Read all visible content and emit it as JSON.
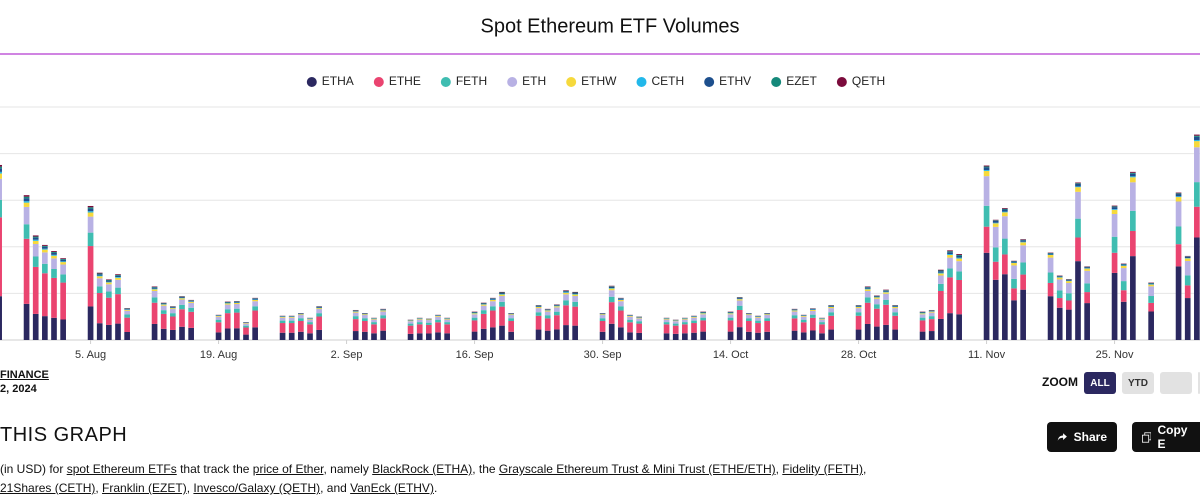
{
  "chart_data": {
    "type": "stacked_bar",
    "title": "Spot Ethereum ETF Volumes",
    "x": [
      "2024-07-26",
      "2024-07-29",
      "2024-07-30",
      "2024-07-31",
      "2024-08-01",
      "2024-08-02",
      "2024-08-05",
      "2024-08-06",
      "2024-08-07",
      "2024-08-08",
      "2024-08-09",
      "2024-08-12",
      "2024-08-13",
      "2024-08-14",
      "2024-08-15",
      "2024-08-16",
      "2024-08-19",
      "2024-08-20",
      "2024-08-21",
      "2024-08-22",
      "2024-08-23",
      "2024-08-26",
      "2024-08-27",
      "2024-08-28",
      "2024-08-29",
      "2024-08-30",
      "2024-09-03",
      "2024-09-04",
      "2024-09-05",
      "2024-09-06",
      "2024-09-09",
      "2024-09-10",
      "2024-09-11",
      "2024-09-12",
      "2024-09-13",
      "2024-09-16",
      "2024-09-17",
      "2024-09-18",
      "2024-09-19",
      "2024-09-20",
      "2024-09-23",
      "2024-09-24",
      "2024-09-25",
      "2024-09-26",
      "2024-09-27",
      "2024-09-30",
      "2024-10-01",
      "2024-10-02",
      "2024-10-03",
      "2024-10-04",
      "2024-10-07",
      "2024-10-08",
      "2024-10-09",
      "2024-10-10",
      "2024-10-11",
      "2024-10-14",
      "2024-10-15",
      "2024-10-16",
      "2024-10-17",
      "2024-10-18",
      "2024-10-21",
      "2024-10-22",
      "2024-10-23",
      "2024-10-24",
      "2024-10-25",
      "2024-10-28",
      "2024-10-29",
      "2024-10-30",
      "2024-10-31",
      "2024-11-01",
      "2024-11-04",
      "2024-11-05",
      "2024-11-06",
      "2024-11-07",
      "2024-11-08",
      "2024-11-11",
      "2024-11-12",
      "2024-11-13",
      "2024-11-14",
      "2024-11-15",
      "2024-11-18",
      "2024-11-19",
      "2024-11-20",
      "2024-11-21",
      "2024-11-22",
      "2024-11-25",
      "2024-11-26",
      "2024-11-27",
      "2024-11-29",
      "2024-12-02",
      "2024-12-03",
      "2024-12-04"
    ],
    "series": [
      {
        "name": "ETHA",
        "color": "#2b2860",
        "values": [
          235,
          194,
          140,
          128,
          119,
          110,
          180,
          90,
          81,
          88,
          43,
          86,
          60,
          54,
          71,
          65,
          41,
          62,
          63,
          29,
          68,
          39,
          39,
          44,
          36,
          54,
          48,
          44,
          36,
          50,
          33,
          36,
          35,
          41,
          36,
          45,
          60,
          68,
          77,
          44,
          56,
          50,
          57,
          80,
          77,
          44,
          87,
          68,
          41,
          38,
          36,
          33,
          36,
          39,
          45,
          45,
          69,
          44,
          39,
          44,
          50,
          41,
          51,
          36,
          56,
          56,
          86,
          72,
          81,
          56,
          45,
          48,
          113,
          144,
          138,
          468,
          323,
          353,
          213,
          270,
          235,
          173,
          163,
          423,
          198,
          360,
          205,
          450,
          153,
          395,
          225,
          550
        ]
      },
      {
        "name": "ETHE",
        "color": "#ea4470",
        "values": [
          423,
          349,
          252,
          230,
          214,
          198,
          324,
          162,
          146,
          158,
          77,
          114,
          80,
          72,
          94,
          86,
          54,
          82,
          84,
          38,
          90,
          52,
          52,
          58,
          48,
          72,
          64,
          58,
          48,
          66,
          44,
          48,
          46,
          54,
          48,
          60,
          80,
          90,
          102,
          58,
          74,
          66,
          76,
          106,
          102,
          58,
          116,
          90,
          54,
          50,
          48,
          44,
          48,
          52,
          60,
          60,
          92,
          58,
          52,
          58,
          66,
          54,
          68,
          48,
          74,
          74,
          114,
          96,
          108,
          74,
          60,
          64,
          150,
          192,
          184,
          140,
          97,
          106,
          64,
          81,
          71,
          52,
          49,
          127,
          59,
          108,
          62,
          135,
          46,
          119,
          68,
          165
        ]
      },
      {
        "name": "FETH",
        "color": "#3fbdb1",
        "values": [
          94,
          78,
          56,
          51,
          48,
          44,
          72,
          36,
          33,
          35,
          17,
          29,
          20,
          18,
          24,
          22,
          14,
          21,
          21,
          10,
          23,
          13,
          13,
          15,
          12,
          18,
          16,
          15,
          12,
          17,
          11,
          12,
          12,
          14,
          12,
          15,
          20,
          23,
          26,
          15,
          19,
          17,
          19,
          27,
          26,
          15,
          29,
          23,
          14,
          13,
          12,
          11,
          12,
          13,
          15,
          15,
          23,
          15,
          13,
          15,
          17,
          14,
          17,
          12,
          19,
          19,
          29,
          24,
          27,
          19,
          15,
          16,
          38,
          48,
          46,
          112,
          77,
          85,
          51,
          65,
          56,
          41,
          39,
          101,
          47,
          86,
          49,
          108,
          37,
          95,
          54,
          132
        ]
      },
      {
        "name": "ETH",
        "color": "#b8b1e4",
        "values": [
          113,
          93,
          67,
          61,
          57,
          53,
          86,
          43,
          39,
          42,
          20,
          34,
          24,
          22,
          28,
          26,
          16,
          25,
          25,
          11,
          27,
          16,
          16,
          17,
          14,
          22,
          19,
          17,
          14,
          20,
          13,
          14,
          14,
          16,
          14,
          18,
          24,
          27,
          31,
          17,
          22,
          20,
          23,
          32,
          31,
          17,
          35,
          27,
          16,
          15,
          14,
          13,
          14,
          16,
          18,
          18,
          28,
          17,
          16,
          17,
          20,
          16,
          20,
          14,
          22,
          22,
          34,
          29,
          32,
          22,
          18,
          19,
          45,
          58,
          55,
          159,
          110,
          120,
          72,
          92,
          80,
          59,
          55,
          144,
          67,
          122,
          70,
          153,
          52,
          134,
          77,
          187
        ]
      },
      {
        "name": "ETHW",
        "color": "#f6d93c",
        "values": [
          28,
          23,
          17,
          15,
          14,
          13,
          22,
          11,
          10,
          11,
          5,
          9,
          6,
          5,
          7,
          6,
          4,
          6,
          6,
          3,
          7,
          4,
          4,
          4,
          4,
          5,
          5,
          4,
          4,
          5,
          3,
          4,
          3,
          4,
          4,
          5,
          6,
          7,
          8,
          4,
          6,
          5,
          6,
          8,
          8,
          4,
          9,
          7,
          4,
          4,
          4,
          3,
          4,
          4,
          5,
          5,
          7,
          4,
          4,
          4,
          5,
          4,
          5,
          4,
          6,
          6,
          9,
          7,
          8,
          6,
          5,
          5,
          11,
          14,
          14,
          28,
          19,
          21,
          13,
          16,
          14,
          10,
          10,
          25,
          12,
          22,
          12,
          27,
          9,
          24,
          14,
          33
        ]
      },
      {
        "name": "CETH",
        "color": "#22b8ea",
        "values": [
          9,
          8,
          6,
          5,
          5,
          4,
          7,
          4,
          3,
          4,
          2,
          3,
          2,
          2,
          2,
          2,
          1,
          2,
          2,
          1,
          2,
          1,
          1,
          1,
          1,
          2,
          2,
          1,
          1,
          2,
          1,
          1,
          1,
          1,
          1,
          2,
          2,
          2,
          3,
          1,
          2,
          2,
          2,
          3,
          3,
          1,
          3,
          2,
          1,
          1,
          1,
          1,
          1,
          1,
          2,
          2,
          2,
          1,
          1,
          1,
          2,
          1,
          2,
          1,
          2,
          2,
          3,
          2,
          3,
          2,
          2,
          2,
          4,
          5,
          5,
          5,
          3,
          4,
          2,
          3,
          2,
          2,
          2,
          4,
          2,
          4,
          2,
          5,
          2,
          4,
          2,
          6
        ]
      },
      {
        "name": "ETHV",
        "color": "#1d4f8d",
        "values": [
          19,
          16,
          11,
          10,
          10,
          9,
          14,
          7,
          7,
          7,
          3,
          6,
          4,
          4,
          5,
          4,
          3,
          4,
          4,
          2,
          5,
          3,
          3,
          3,
          2,
          4,
          3,
          3,
          2,
          3,
          2,
          2,
          2,
          3,
          2,
          3,
          4,
          5,
          5,
          3,
          4,
          3,
          4,
          5,
          5,
          3,
          6,
          5,
          3,
          3,
          2,
          2,
          2,
          3,
          3,
          3,
          5,
          3,
          3,
          3,
          3,
          3,
          3,
          2,
          4,
          4,
          6,
          5,
          5,
          4,
          3,
          3,
          8,
          10,
          9,
          14,
          10,
          11,
          6,
          8,
          7,
          5,
          5,
          13,
          6,
          11,
          6,
          14,
          5,
          12,
          7,
          17
        ]
      },
      {
        "name": "EZET",
        "color": "#15897a",
        "values": [
          9,
          8,
          6,
          5,
          5,
          4,
          7,
          4,
          3,
          4,
          2,
          3,
          2,
          2,
          2,
          2,
          1,
          2,
          2,
          1,
          2,
          1,
          1,
          1,
          1,
          2,
          2,
          1,
          1,
          2,
          1,
          1,
          1,
          1,
          1,
          2,
          2,
          2,
          3,
          1,
          2,
          2,
          2,
          3,
          3,
          1,
          3,
          2,
          1,
          1,
          1,
          1,
          1,
          1,
          2,
          2,
          2,
          1,
          1,
          1,
          2,
          1,
          2,
          1,
          2,
          2,
          3,
          2,
          3,
          2,
          2,
          2,
          4,
          5,
          5,
          5,
          3,
          4,
          2,
          3,
          2,
          2,
          2,
          4,
          2,
          4,
          2,
          5,
          2,
          4,
          2,
          6
        ]
      },
      {
        "name": "QETH",
        "color": "#7b0b3c",
        "values": [
          9,
          8,
          6,
          5,
          5,
          4,
          7,
          4,
          3,
          4,
          2,
          3,
          2,
          2,
          2,
          2,
          1,
          2,
          2,
          1,
          2,
          1,
          1,
          1,
          1,
          2,
          2,
          1,
          1,
          2,
          1,
          1,
          1,
          1,
          1,
          2,
          2,
          2,
          3,
          1,
          2,
          2,
          2,
          3,
          3,
          1,
          3,
          2,
          1,
          1,
          1,
          1,
          1,
          1,
          2,
          2,
          2,
          1,
          1,
          1,
          2,
          1,
          2,
          1,
          2,
          2,
          3,
          2,
          3,
          2,
          2,
          2,
          4,
          5,
          5,
          5,
          3,
          4,
          2,
          3,
          2,
          2,
          2,
          4,
          2,
          4,
          2,
          5,
          2,
          4,
          2,
          6
        ]
      }
    ],
    "xlim": [
      "2024-07-25",
      "2024-12-05"
    ],
    "xticks": [
      {
        "value": "2024-08-05",
        "label": "5. Aug"
      },
      {
        "value": "2024-08-19",
        "label": "19. Aug"
      },
      {
        "value": "2024-09-02",
        "label": "2. Sep"
      },
      {
        "value": "2024-09-16",
        "label": "16. Sep"
      },
      {
        "value": "2024-09-30",
        "label": "30. Sep"
      },
      {
        "value": "2024-10-14",
        "label": "14. Oct"
      },
      {
        "value": "2024-10-28",
        "label": "28. Oct"
      },
      {
        "value": "2024-11-11",
        "label": "11. Nov"
      },
      {
        "value": "2024-11-25",
        "label": "25. Nov"
      }
    ],
    "ylim": [
      0,
      1250
    ],
    "grid": true,
    "legend": "top"
  },
  "source": {
    "name": "FINANCE",
    "date": "2, 2024"
  },
  "zoom": {
    "label": "ZOOM",
    "buttons": [
      "ALL",
      "YTD"
    ]
  },
  "section": {
    "heading": "THIS GRAPH",
    "actions": [
      "Share",
      "Copy E"
    ]
  },
  "description": {
    "parts": [
      {
        "text": "(in USD) for ",
        "link": false
      },
      {
        "text": "spot Ethereum ETFs",
        "link": true
      },
      {
        "text": " that track the ",
        "link": false
      },
      {
        "text": "price of Ether",
        "link": true
      },
      {
        "text": ", namely ",
        "link": false
      },
      {
        "text": "BlackRock (ETHA)",
        "link": true
      },
      {
        "text": ", the ",
        "link": false
      },
      {
        "text": "Grayscale Ethereum Trust & Mini Trust (ETHE/ETH)",
        "link": true
      },
      {
        "text": ", ",
        "link": false
      },
      {
        "text": "Fidelity (FETH)",
        "link": true
      },
      {
        "text": ", ",
        "link": false
      },
      {
        "text": "21Shares (CETH)",
        "link": true
      },
      {
        "text": ", ",
        "link": false
      },
      {
        "text": "Franklin (EZET)",
        "link": true
      },
      {
        "text": ", ",
        "link": false
      },
      {
        "text": "Invesco/Galaxy (QETH)",
        "link": true
      },
      {
        "text": ", and ",
        "link": false
      },
      {
        "text": "VanEck (ETHV)",
        "link": true
      },
      {
        "text": ".",
        "link": false
      }
    ]
  }
}
